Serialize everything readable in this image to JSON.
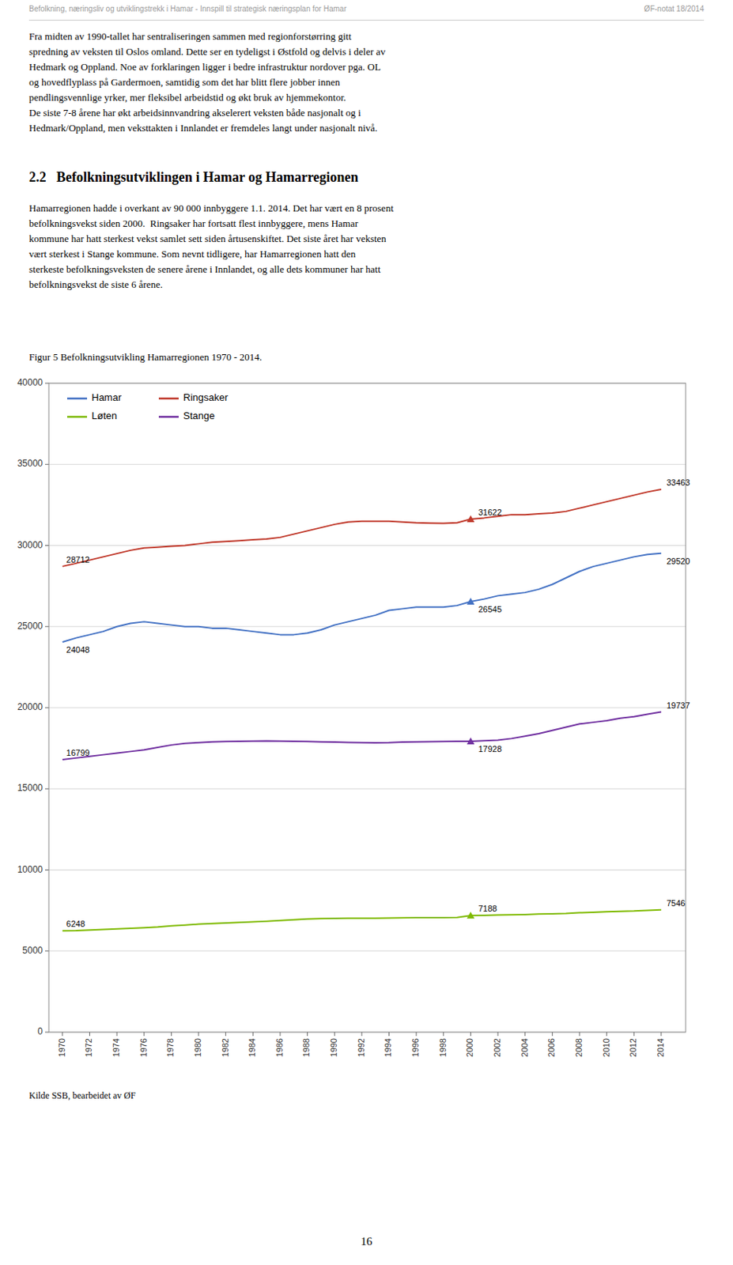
{
  "page": {
    "header_left": "Befolkning, næringsliv og utviklingstrekk i Hamar - Innspill til strategisk næringsplan for Hamar",
    "header_right": "ØF-notat 18/2014",
    "body1_lines": [
      "Fra midten av 1990-tallet har sentraliseringen sammen med regionforstørring gitt",
      "spredning av veksten til Oslos omland. Dette ser en tydeligst i Østfold og delvis i deler av",
      "Hedmark og Oppland. Noe av forklaringen ligger i bedre infrastruktur nordover pga. OL",
      "og hovedflyplass på Gardermoen, samtidig som det har blitt flere jobber innen",
      "pendlingsvennlige yrker, mer fleksibel arbeidstid og økt bruk av hjemmekontor.",
      "De siste 7-8 årene har økt arbeidsinnvandring akselerert veksten både nasjonalt og i",
      "Hedmark/Oppland, men veksttakten i Innlandet er fremdeles langt under nasjonalt nivå."
    ],
    "section_heading": "2.2   Befolkningsutviklingen i Hamar og Hamarregionen",
    "body2_lines": [
      "Hamarregionen hadde i overkant av 90 000 innbyggere 1.1. 2014. Det har vært en 8 prosent",
      "befolkningsvekst siden 2000.  Ringsaker har fortsatt flest innbyggere, mens Hamar",
      "kommune har hatt sterkest vekst samlet sett siden årtusenskiftet. Det siste året har veksten",
      "vært sterkest i Stange kommune. Som nevnt tidligere, har Hamarregionen hatt den",
      "sterkeste befolkningsveksten de senere årene i Innlandet, og alle dets kommuner har hatt",
      "befolkningsvekst de siste 6 årene."
    ],
    "page_number": "16"
  },
  "chart_data": {
    "type": "line",
    "title": "Figur 5 Befolkningsutvikling Hamarregionen 1970 - 2014.",
    "source": "Kilde SSB, bearbeidet av ØF",
    "x": [
      1970,
      1971,
      1972,
      1973,
      1974,
      1975,
      1976,
      1977,
      1978,
      1979,
      1980,
      1981,
      1982,
      1983,
      1984,
      1985,
      1986,
      1987,
      1988,
      1989,
      1990,
      1991,
      1992,
      1993,
      1994,
      1995,
      1996,
      1997,
      1998,
      1999,
      2000,
      2001,
      2002,
      2003,
      2004,
      2005,
      2006,
      2007,
      2008,
      2009,
      2010,
      2011,
      2012,
      2013,
      2014
    ],
    "series": [
      {
        "name": "Hamar",
        "color": "#4472c4",
        "values": [
          24048,
          24300,
          24500,
          24700,
          25000,
          25200,
          25300,
          25200,
          25100,
          25000,
          25000,
          24900,
          24900,
          24800,
          24700,
          24600,
          24500,
          24500,
          24600,
          24800,
          25100,
          25300,
          25500,
          25700,
          26000,
          26100,
          26200,
          26200,
          26200,
          26300,
          26545,
          26700,
          26900,
          27000,
          27100,
          27300,
          27600,
          28000,
          28400,
          28700,
          28900,
          29100,
          29300,
          29450,
          29520
        ]
      },
      {
        "name": "Ringsaker",
        "color": "#c0392b",
        "values": [
          28712,
          28900,
          29100,
          29300,
          29500,
          29700,
          29850,
          29900,
          29950,
          30000,
          30100,
          30200,
          30250,
          30300,
          30350,
          30400,
          30500,
          30700,
          30900,
          31100,
          31300,
          31450,
          31500,
          31500,
          31500,
          31450,
          31400,
          31380,
          31360,
          31400,
          31622,
          31700,
          31800,
          31900,
          31900,
          31950,
          32000,
          32100,
          32300,
          32500,
          32700,
          32900,
          33100,
          33300,
          33463
        ]
      },
      {
        "name": "Løten",
        "color": "#7fba00",
        "values": [
          6248,
          6260,
          6300,
          6330,
          6370,
          6400,
          6440,
          6480,
          6550,
          6600,
          6660,
          6700,
          6730,
          6760,
          6800,
          6840,
          6880,
          6930,
          6980,
          7000,
          7010,
          7020,
          7020,
          7020,
          7030,
          7050,
          7060,
          7060,
          7060,
          7070,
          7188,
          7200,
          7220,
          7230,
          7250,
          7280,
          7300,
          7320,
          7360,
          7390,
          7420,
          7450,
          7470,
          7510,
          7546
        ]
      },
      {
        "name": "Stange",
        "color": "#7030a0",
        "values": [
          16799,
          16900,
          17000,
          17100,
          17200,
          17300,
          17400,
          17550,
          17700,
          17800,
          17850,
          17900,
          17920,
          17930,
          17940,
          17950,
          17940,
          17930,
          17920,
          17900,
          17880,
          17860,
          17850,
          17840,
          17850,
          17880,
          17900,
          17910,
          17920,
          17930,
          17928,
          17960,
          18000,
          18100,
          18250,
          18400,
          18600,
          18800,
          19000,
          19100,
          19200,
          19350,
          19450,
          19600,
          19737
        ]
      }
    ],
    "annotations": [
      {
        "series": "Hamar",
        "x": 1970,
        "text": "24048"
      },
      {
        "series": "Ringsaker",
        "x": 1970,
        "text": "28712"
      },
      {
        "series": "Stange",
        "x": 1970,
        "text": "16799"
      },
      {
        "series": "Løten",
        "x": 1970,
        "text": "6248"
      },
      {
        "series": "Hamar",
        "x": 2000,
        "text": "26545",
        "marker": "triangle"
      },
      {
        "series": "Ringsaker",
        "x": 2000,
        "text": "31622",
        "marker": "triangle"
      },
      {
        "series": "Stange",
        "x": 2000,
        "text": "17928",
        "marker": "triangle"
      },
      {
        "series": "Løten",
        "x": 2000,
        "text": "7188",
        "marker": "triangle"
      },
      {
        "series": "Ringsaker",
        "x": 2014,
        "text": "33463"
      },
      {
        "series": "Hamar",
        "x": 2014,
        "text": "29520"
      },
      {
        "series": "Stange",
        "x": 2014,
        "text": "19737"
      },
      {
        "series": "Løten",
        "x": 2014,
        "text": "7546"
      }
    ],
    "xlim": [
      1969,
      2015.8
    ],
    "xticks": [
      1970,
      1972,
      1974,
      1976,
      1978,
      1980,
      1982,
      1984,
      1986,
      1988,
      1990,
      1992,
      1994,
      1996,
      1998,
      2000,
      2002,
      2004,
      2006,
      2008,
      2010,
      2012,
      2014
    ],
    "ylim": [
      0,
      40000
    ],
    "yticks": [
      0,
      5000,
      10000,
      15000,
      20000,
      25000,
      30000,
      35000,
      40000
    ],
    "grid": true,
    "legend": "upper left"
  }
}
